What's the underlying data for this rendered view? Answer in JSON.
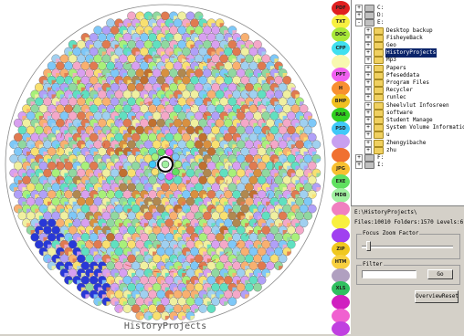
{
  "visualization": {
    "root_label": "HistoryProjects",
    "background": "#ffffff",
    "bubble_palette": [
      "#f4a8c8",
      "#a8f07a",
      "#7ec8f8",
      "#f8e070",
      "#f8b070",
      "#b0a0f8",
      "#60e0c0",
      "#e07a50",
      "#f0f0a0",
      "#90d8a0",
      "#d8a0f0",
      "#a0d0f0"
    ],
    "ring_colors": [
      "#b08850",
      "#c07030",
      "#d89040"
    ],
    "highlight_ring_color": "#c03020",
    "outer_dot_color": "#2838d8",
    "focus_color": "#000000"
  },
  "legend": {
    "items": [
      {
        "label": "PDF",
        "color": "#e02020"
      },
      {
        "label": "TXT",
        "color": "#f8f040"
      },
      {
        "label": "DOC",
        "color": "#a8e838"
      },
      {
        "label": "CPP",
        "color": "#40e0f0"
      },
      {
        "label": "",
        "color": "#f8f8b0"
      },
      {
        "label": "PPT",
        "color": "#f060f0"
      },
      {
        "label": "H",
        "color": "#f89030"
      },
      {
        "label": "BMP",
        "color": "#f0c020"
      },
      {
        "label": "RAR",
        "color": "#30d020"
      },
      {
        "label": "PSD",
        "color": "#40c8f8"
      },
      {
        "label": "",
        "color": "#c8a0f0"
      },
      {
        "label": "",
        "color": "#f07030"
      },
      {
        "label": "JPG",
        "color": "#f8c030"
      },
      {
        "label": "EXE",
        "color": "#60e060"
      },
      {
        "label": "MDB",
        "color": "#a0f0a0"
      },
      {
        "label": "",
        "color": "#f080c0"
      },
      {
        "label": "",
        "color": "#f8f040"
      },
      {
        "label": "",
        "color": "#a040f0"
      },
      {
        "label": "ZIP",
        "color": "#f0c820"
      },
      {
        "label": "HTM",
        "color": "#f8d040"
      },
      {
        "label": "",
        "color": "#b0a0c0"
      },
      {
        "label": "XLS",
        "color": "#30c060"
      },
      {
        "label": "",
        "color": "#d020c0"
      },
      {
        "label": "",
        "color": "#f060d0"
      },
      {
        "label": "",
        "color": "#c040e0"
      }
    ]
  },
  "tree": {
    "items": [
      {
        "label": "C:",
        "depth": 0,
        "toggle": "+",
        "icon": "drive"
      },
      {
        "label": "D:",
        "depth": 0,
        "toggle": "+",
        "icon": "drive"
      },
      {
        "label": "E:",
        "depth": 0,
        "toggle": "-",
        "icon": "drive"
      },
      {
        "label": "Desktop backup",
        "depth": 1,
        "toggle": "+",
        "icon": "folder"
      },
      {
        "label": "FisheyeBack",
        "depth": 1,
        "toggle": "+",
        "icon": "folder"
      },
      {
        "label": "Geo",
        "depth": 1,
        "toggle": "+",
        "icon": "folder"
      },
      {
        "label": "HistoryProjects",
        "depth": 1,
        "toggle": "+",
        "icon": "folder",
        "selected": true
      },
      {
        "label": "Mp3",
        "depth": 1,
        "toggle": "+",
        "icon": "folder"
      },
      {
        "label": "Papers",
        "depth": 1,
        "toggle": "+",
        "icon": "folder"
      },
      {
        "label": "Pfeseddata",
        "depth": 1,
        "toggle": "+",
        "icon": "folder"
      },
      {
        "label": "Program Files",
        "depth": 1,
        "toggle": "+",
        "icon": "folder"
      },
      {
        "label": "Recycler",
        "depth": 1,
        "toggle": "+",
        "icon": "folder"
      },
      {
        "label": "runlec",
        "depth": 1,
        "toggle": "+",
        "icon": "folder"
      },
      {
        "label": "Sheelvlut Infosreen",
        "depth": 1,
        "toggle": "+",
        "icon": "folder"
      },
      {
        "label": "software",
        "depth": 1,
        "toggle": "+",
        "icon": "folder"
      },
      {
        "label": "Student Manage",
        "depth": 1,
        "toggle": "+",
        "icon": "folder"
      },
      {
        "label": "System Volume Information",
        "depth": 1,
        "toggle": "+",
        "icon": "folder"
      },
      {
        "label": "u",
        "depth": 1,
        "toggle": "+",
        "icon": "folder"
      },
      {
        "label": "Zhengyibache",
        "depth": 1,
        "toggle": "+",
        "icon": "folder"
      },
      {
        "label": "zhu",
        "depth": 1,
        "toggle": "+",
        "icon": "folder"
      },
      {
        "label": "F:",
        "depth": 0,
        "toggle": "+",
        "icon": "drive"
      },
      {
        "label": "I:",
        "depth": 0,
        "toggle": "+",
        "icon": "drive"
      }
    ]
  },
  "info": {
    "path": "E:\\HistoryProjects\\",
    "stats": "Files:10010 Folders:1570 Levels:6"
  },
  "focus_zoom": {
    "title": "Focus Zoom Factor",
    "level": 0.05
  },
  "filter": {
    "title": "Filter",
    "value": "",
    "go_label": "Go"
  },
  "overview_reset_label": "OverviewReset"
}
